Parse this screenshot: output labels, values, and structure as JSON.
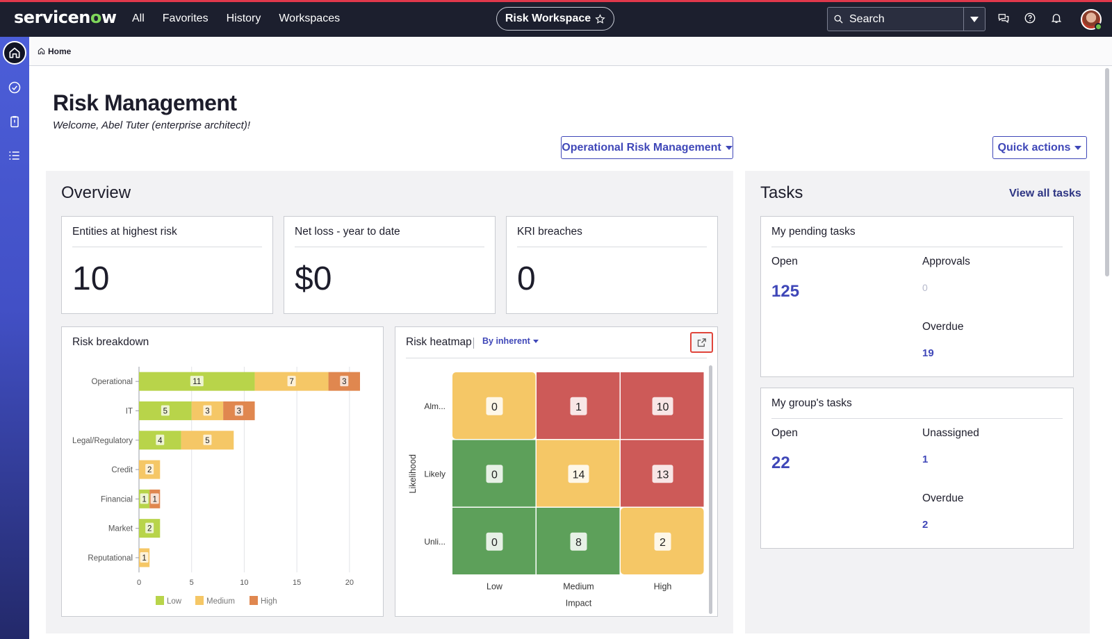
{
  "topbar": {
    "logo": "servicenow",
    "nav": [
      "All",
      "Favorites",
      "History",
      "Workspaces"
    ],
    "workspace_pill": "Risk Workspace",
    "search_placeholder": "Search"
  },
  "breadcrumb": {
    "home": "Home"
  },
  "page": {
    "title": "Risk Management",
    "welcome": "Welcome, Abel Tuter (enterprise architect)!",
    "scope_button": "Operational Risk Management",
    "quick_actions": "Quick actions"
  },
  "overview": {
    "title": "Overview",
    "cards": [
      {
        "label": "Entities at highest risk",
        "value": "10"
      },
      {
        "label": "Net loss - year to date",
        "value": "$0"
      },
      {
        "label": "KRI breaches",
        "value": "0"
      }
    ]
  },
  "risk_breakdown": {
    "title": "Risk breakdown",
    "legend": [
      "Low",
      "Medium",
      "High"
    ],
    "colors": {
      "low": "#b8d44a",
      "medium": "#f5c766",
      "high": "#e0874f"
    }
  },
  "risk_heatmap": {
    "title": "Risk heatmap",
    "filter": "By inherent",
    "ylabel": "Likelihood",
    "xlabel": "Impact",
    "rows": [
      "Alm...",
      "Likely",
      "Unli..."
    ],
    "cols": [
      "Low",
      "Medium",
      "High"
    ],
    "cells": [
      [
        0,
        1,
        10
      ],
      [
        0,
        14,
        13
      ],
      [
        0,
        8,
        2
      ]
    ],
    "cell_colors": [
      [
        "#f5c766",
        "#cd5a58",
        "#cd5a58"
      ],
      [
        "#5da05a",
        "#f5c766",
        "#cd5a58"
      ],
      [
        "#5da05a",
        "#5da05a",
        "#f5c766"
      ]
    ]
  },
  "tasks": {
    "title": "Tasks",
    "view_all": "View all tasks",
    "pending": {
      "title": "My pending tasks",
      "open_label": "Open",
      "open_value": "125",
      "approvals_label": "Approvals",
      "approvals_value": "0",
      "overdue_label": "Overdue",
      "overdue_value": "19"
    },
    "group": {
      "title": "My group's tasks",
      "open_label": "Open",
      "open_value": "22",
      "unassigned_label": "Unassigned",
      "unassigned_value": "1",
      "overdue_label": "Overdue",
      "overdue_value": "2"
    }
  },
  "chart_data": {
    "type": "bar",
    "orientation": "horizontal",
    "stacked": true,
    "categories": [
      "Operational",
      "IT",
      "Legal/Regulatory",
      "Credit",
      "Financial",
      "Market",
      "Reputational"
    ],
    "series": [
      {
        "name": "Low",
        "values": [
          11,
          5,
          4,
          0,
          1,
          2,
          0
        ]
      },
      {
        "name": "Medium",
        "values": [
          7,
          3,
          5,
          2,
          0,
          0,
          1
        ]
      },
      {
        "name": "High",
        "values": [
          3,
          3,
          0,
          0,
          1,
          0,
          0
        ]
      }
    ],
    "xlim": [
      0,
      21
    ],
    "xticks": [
      0,
      5,
      10,
      15,
      20
    ],
    "grid": true,
    "legend_position": "bottom"
  }
}
